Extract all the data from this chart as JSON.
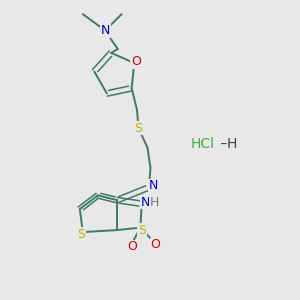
{
  "bg_color": "#e8e8e8",
  "bond_color": "#3d7a6a",
  "S_color": "#b8b800",
  "N_color": "#0000cc",
  "O_color": "#cc0000",
  "HCl_color": "#44aa44",
  "H_color": "#777777",
  "figsize": [
    3.0,
    3.0
  ],
  "dpi": 100,
  "xlim": [
    0,
    10
  ],
  "ylim": [
    0,
    10
  ]
}
